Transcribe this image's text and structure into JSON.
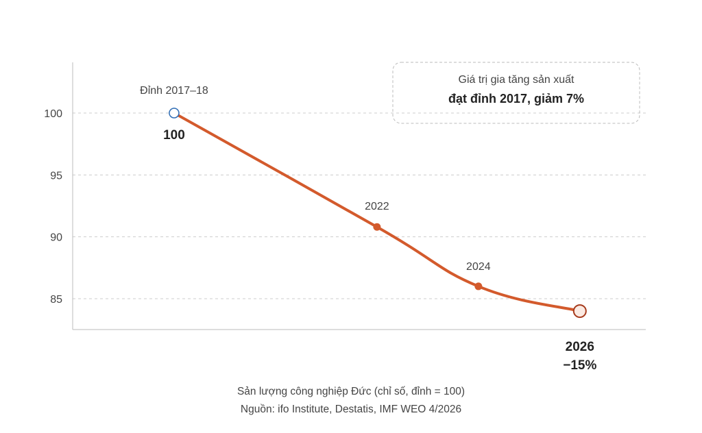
{
  "chart_data": {
    "type": "line",
    "title": "",
    "xlabel": "",
    "ylabel": "",
    "x": [
      2018,
      2022,
      2024,
      2026
    ],
    "values": [
      100,
      90.8,
      86,
      84
    ],
    "ylim": [
      82,
      104
    ],
    "yticks": [
      85,
      90,
      95,
      100
    ],
    "grid": "horizontal dashed",
    "point_labels": [
      "Đỉnh 2017–18",
      "2022",
      "2024",
      "2026"
    ],
    "start_value_label": "100",
    "end_change_label": "−15%",
    "annotation": {
      "line1": "Giá trị gia tăng sản xuất",
      "line2": "đạt đỉnh 2017, giảm 7%"
    }
  },
  "colors": {
    "line": "#d35a2c",
    "start_marker": "#2f6db5",
    "end_marker_fill": "#fbeae2",
    "end_marker_stroke": "#a63a1c",
    "grid": "#cccccc",
    "axis": "#bbbbbb"
  },
  "caption": {
    "line1": "Sản lượng công nghiệp Đức (chỉ số, đỉnh = 100)",
    "line2": "Nguồn: ifo Institute, Destatis, IMF WEO 4/2026"
  }
}
